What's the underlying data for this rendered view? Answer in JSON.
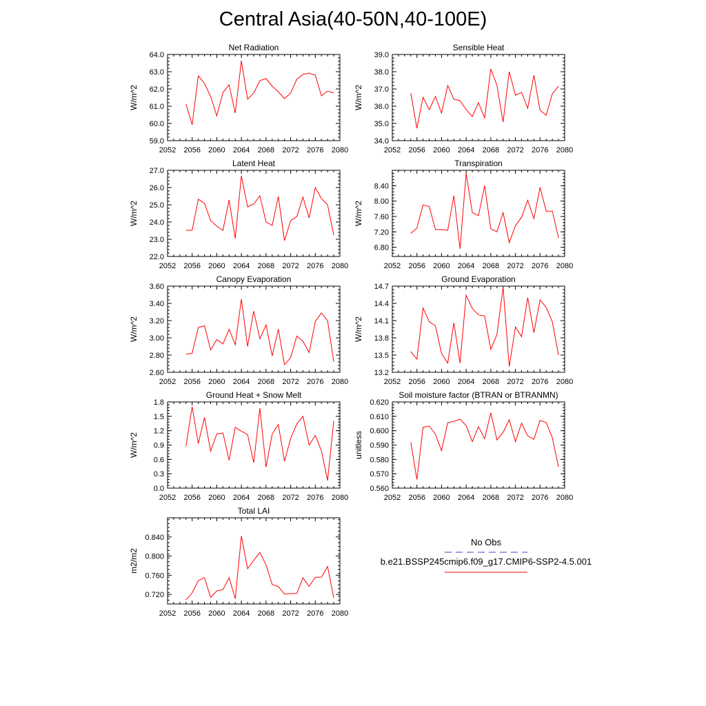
{
  "title": "Central Asia(40-50N,40-100E)",
  "line_color": "#ff0000",
  "obs_color": "#3c3cb4",
  "legend": {
    "obs_label": "No Obs",
    "case_label": "b.e21.BSSP245cmip6.f09_g17.CMIP6-SSP2-4.5.001"
  },
  "chart_data": [
    {
      "type": "line",
      "title": "Net Radiation",
      "ylabel": "W/m^2",
      "xlim": [
        2052,
        2080
      ],
      "ylim": [
        59.0,
        64.0
      ],
      "xticks": [
        "2052",
        "2056",
        "2060",
        "2064",
        "2068",
        "2072",
        "2076",
        "2080"
      ],
      "yticks": [
        "59.0",
        "60.0",
        "61.0",
        "62.0",
        "63.0",
        "64.0"
      ],
      "series": [
        {
          "x": [
            2055,
            2056,
            2057,
            2058,
            2059,
            2060,
            2061,
            2062,
            2063,
            2064,
            2065,
            2066,
            2067,
            2068,
            2069,
            2070,
            2071,
            2072,
            2073,
            2074,
            2075,
            2076,
            2077,
            2078,
            2079
          ],
          "values": [
            61.12,
            59.92,
            62.76,
            62.32,
            61.56,
            60.44,
            61.8,
            62.24,
            60.6,
            63.64,
            61.4,
            61.76,
            62.48,
            62.6,
            62.16,
            61.84,
            61.44,
            61.76,
            62.56,
            62.84,
            62.92,
            62.8,
            61.6,
            61.88,
            61.76
          ]
        }
      ]
    },
    {
      "type": "line",
      "title": "Sensible Heat",
      "ylabel": "W/m^2",
      "xlim": [
        2052,
        2080
      ],
      "ylim": [
        34.0,
        39.0
      ],
      "xticks": [
        "2052",
        "2056",
        "2060",
        "2064",
        "2068",
        "2072",
        "2076",
        "2080"
      ],
      "yticks": [
        "34.0",
        "35.0",
        "36.0",
        "37.0",
        "38.0",
        "39.0"
      ],
      "series": [
        {
          "x": [
            2055,
            2056,
            2057,
            2058,
            2059,
            2060,
            2061,
            2062,
            2063,
            2064,
            2065,
            2066,
            2067,
            2068,
            2069,
            2070,
            2071,
            2072,
            2073,
            2074,
            2075,
            2076,
            2077,
            2078,
            2079
          ],
          "values": [
            36.76,
            34.72,
            36.52,
            35.8,
            36.56,
            35.6,
            37.2,
            36.4,
            36.32,
            35.8,
            35.4,
            36.2,
            35.32,
            38.16,
            37.2,
            35.08,
            38.0,
            36.64,
            36.8,
            35.88,
            37.8,
            35.76,
            35.48,
            36.72,
            37.16
          ]
        }
      ]
    },
    {
      "type": "line",
      "title": "Latent Heat",
      "ylabel": "W/m^2",
      "xlim": [
        2052,
        2080
      ],
      "ylim": [
        22.0,
        27.0
      ],
      "xticks": [
        "2052",
        "2056",
        "2060",
        "2064",
        "2068",
        "2072",
        "2076",
        "2080"
      ],
      "yticks": [
        "22.0",
        "23.0",
        "24.0",
        "25.0",
        "26.0",
        "27.0"
      ],
      "series": [
        {
          "x": [
            2055,
            2056,
            2057,
            2058,
            2059,
            2060,
            2061,
            2062,
            2063,
            2064,
            2065,
            2066,
            2067,
            2068,
            2069,
            2070,
            2071,
            2072,
            2073,
            2074,
            2075,
            2076,
            2077,
            2078,
            2079
          ],
          "values": [
            23.52,
            23.52,
            25.32,
            25.08,
            24.08,
            23.76,
            23.52,
            25.28,
            23.04,
            26.68,
            24.88,
            25.04,
            25.52,
            24.0,
            23.8,
            25.48,
            22.92,
            24.08,
            24.32,
            25.44,
            24.24,
            26.0,
            25.36,
            25.0,
            23.24
          ]
        }
      ]
    },
    {
      "type": "line",
      "title": "Transpiration",
      "ylabel": "W/m^2",
      "xlim": [
        2052,
        2080
      ],
      "ylim": [
        6.56,
        8.8
      ],
      "xticks": [
        "2052",
        "2056",
        "2060",
        "2064",
        "2068",
        "2072",
        "2076",
        "2080"
      ],
      "yticks": [
        "6.80",
        "7.20",
        "7.60",
        "8.00",
        "8.40"
      ],
      "yticks_at": [
        6.8,
        7.2,
        7.6,
        8.0,
        8.4
      ],
      "series": [
        {
          "x": [
            2055,
            2056,
            2057,
            2058,
            2059,
            2060,
            2061,
            2062,
            2063,
            2064,
            2065,
            2066,
            2067,
            2068,
            2069,
            2070,
            2071,
            2072,
            2073,
            2074,
            2075,
            2076,
            2077,
            2078,
            2079
          ],
          "values": [
            7.16,
            7.3,
            7.9,
            7.86,
            7.26,
            7.26,
            7.24,
            8.14,
            6.76,
            8.72,
            7.7,
            7.62,
            8.4,
            7.28,
            7.2,
            7.7,
            6.92,
            7.36,
            7.58,
            8.02,
            7.54,
            8.36,
            7.74,
            7.74,
            7.04
          ]
        }
      ]
    },
    {
      "type": "line",
      "title": "Canopy Evaporation",
      "ylabel": "W/m^2",
      "xlim": [
        2052,
        2080
      ],
      "ylim": [
        2.6,
        3.6
      ],
      "xticks": [
        "2052",
        "2056",
        "2060",
        "2064",
        "2068",
        "2072",
        "2076",
        "2080"
      ],
      "yticks": [
        "2.60",
        "2.80",
        "3.00",
        "3.20",
        "3.40",
        "3.60"
      ],
      "series": [
        {
          "x": [
            2055,
            2056,
            2057,
            2058,
            2059,
            2060,
            2061,
            2062,
            2063,
            2064,
            2065,
            2066,
            2067,
            2068,
            2069,
            2070,
            2071,
            2072,
            2073,
            2074,
            2075,
            2076,
            2077,
            2078,
            2079
          ],
          "values": [
            2.81,
            2.82,
            3.12,
            3.14,
            2.86,
            2.98,
            2.93,
            3.1,
            2.92,
            3.45,
            2.9,
            3.31,
            2.99,
            3.15,
            2.79,
            3.1,
            2.69,
            2.77,
            3.02,
            2.96,
            2.83,
            3.19,
            3.29,
            3.2,
            2.72
          ]
        }
      ]
    },
    {
      "type": "line",
      "title": "Ground Evaporation",
      "ylabel": "W/m^2",
      "xlim": [
        2052,
        2080
      ],
      "ylim": [
        13.2,
        14.7
      ],
      "xticks": [
        "2052",
        "2056",
        "2060",
        "2064",
        "2068",
        "2072",
        "2076",
        "2080"
      ],
      "yticks": [
        "13.2",
        "13.5",
        "13.8",
        "14.1",
        "14.4",
        "14.7"
      ],
      "series": [
        {
          "x": [
            2055,
            2056,
            2057,
            2058,
            2059,
            2060,
            2061,
            2062,
            2063,
            2064,
            2065,
            2066,
            2067,
            2068,
            2069,
            2070,
            2071,
            2072,
            2073,
            2074,
            2075,
            2076,
            2077,
            2078,
            2079
          ],
          "values": [
            13.56,
            13.43,
            14.32,
            14.08,
            14.01,
            13.53,
            13.36,
            14.06,
            13.36,
            14.54,
            14.31,
            14.2,
            14.18,
            13.6,
            13.86,
            14.68,
            13.3,
            13.99,
            13.82,
            14.5,
            13.89,
            14.46,
            14.33,
            14.08,
            13.5
          ]
        }
      ]
    },
    {
      "type": "line",
      "title": "Ground Heat + Snow Melt",
      "ylabel": "W/m^2",
      "xlim": [
        2052,
        2080
      ],
      "ylim": [
        0.0,
        1.8
      ],
      "xticks": [
        "2052",
        "2056",
        "2060",
        "2064",
        "2068",
        "2072",
        "2076",
        "2080"
      ],
      "yticks": [
        "0.0",
        "0.3",
        "0.6",
        "0.9",
        "1.2",
        "1.5",
        "1.8"
      ],
      "series": [
        {
          "x": [
            2055,
            2056,
            2057,
            2058,
            2059,
            2060,
            2061,
            2062,
            2063,
            2064,
            2065,
            2066,
            2067,
            2068,
            2069,
            2070,
            2071,
            2072,
            2073,
            2074,
            2075,
            2076,
            2077,
            2078,
            2079
          ],
          "values": [
            0.88,
            1.7,
            0.93,
            1.48,
            0.77,
            1.13,
            1.15,
            0.58,
            1.27,
            1.19,
            1.12,
            0.53,
            1.67,
            0.44,
            1.13,
            1.33,
            0.56,
            1.04,
            1.34,
            1.5,
            0.9,
            1.1,
            0.78,
            0.16,
            1.4
          ]
        }
      ]
    },
    {
      "type": "line",
      "title": "Soil moisture factor (BTRAN or BTRANMN)",
      "ylabel": "unitless",
      "xlim": [
        2052,
        2080
      ],
      "ylim": [
        0.56,
        0.62
      ],
      "xticks": [
        "2052",
        "2056",
        "2060",
        "2064",
        "2068",
        "2072",
        "2076",
        "2080"
      ],
      "yticks": [
        "0.560",
        "0.570",
        "0.580",
        "0.590",
        "0.600",
        "0.610",
        "0.620"
      ],
      "series": [
        {
          "x": [
            2055,
            2056,
            2057,
            2058,
            2059,
            2060,
            2061,
            2062,
            2063,
            2064,
            2065,
            2066,
            2067,
            2068,
            2069,
            2070,
            2071,
            2072,
            2073,
            2074,
            2075,
            2076,
            2077,
            2078,
            2079
          ],
          "values": [
            0.592,
            0.566,
            0.6024,
            0.6032,
            0.5976,
            0.586,
            0.6056,
            0.6064,
            0.608,
            0.6036,
            0.5924,
            0.6028,
            0.5944,
            0.6124,
            0.5936,
            0.5988,
            0.6076,
            0.5924,
            0.6052,
            0.5964,
            0.594,
            0.6072,
            0.6056,
            0.5952,
            0.5748
          ]
        }
      ]
    },
    {
      "type": "line",
      "title": "Total LAI",
      "ylabel": "m2/m2",
      "xlim": [
        2052,
        2080
      ],
      "ylim": [
        0.7,
        0.88
      ],
      "xticks": [
        "2052",
        "2056",
        "2060",
        "2064",
        "2068",
        "2072",
        "2076",
        "2080"
      ],
      "yticks": [
        "0.720",
        "0.760",
        "0.800",
        "0.840"
      ],
      "yticks_at": [
        0.72,
        0.76,
        0.8,
        0.84
      ],
      "series": [
        {
          "x": [
            2055,
            2056,
            2057,
            2058,
            2059,
            2060,
            2061,
            2062,
            2063,
            2064,
            2065,
            2066,
            2067,
            2068,
            2069,
            2070,
            2071,
            2072,
            2073,
            2074,
            2075,
            2076,
            2077,
            2078,
            2079
          ],
          "values": [
            0.7084,
            0.7232,
            0.7488,
            0.7548,
            0.7136,
            0.7272,
            0.73,
            0.7548,
            0.7108,
            0.842,
            0.7736,
            0.7912,
            0.8076,
            0.7816,
            0.7404,
            0.7364,
            0.7208,
            0.7216,
            0.722,
            0.7544,
            0.7368,
            0.7556,
            0.756,
            0.7784,
            0.7124
          ]
        }
      ]
    }
  ]
}
